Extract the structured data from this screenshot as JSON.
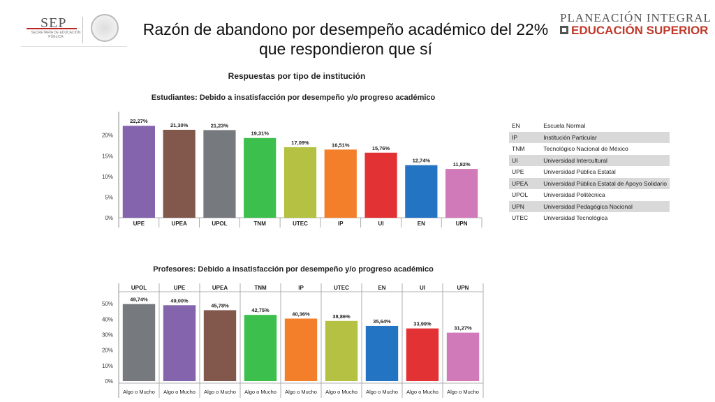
{
  "header": {
    "sep_logo_text": "SEP",
    "sep_subtext": "SECRETARÍA DE EDUCACIÓN PÚBLICA",
    "title": "Razón de abandono por desempeño académico del 22% que respondieron que sí",
    "planeacion_line1": "PLANEACIÓN INTEGRAL",
    "planeacion_line2": "EDUCACIÓN SUPERIOR",
    "subtitle": "Respuestas por tipo de institución"
  },
  "colors": {
    "UPE": "#8364ad",
    "UPEA": "#82574c",
    "UPOL": "#76797d",
    "TNM": "#3cbf4d",
    "UTEC": "#b4c142",
    "IP": "#f37f2b",
    "UI": "#e23234",
    "EN": "#2474c4",
    "UPN": "#d17ab9",
    "title_red": "#c0392b"
  },
  "chart_data": [
    {
      "type": "bar",
      "title": "Estudiantes: Debido a insatisfacción por desempeño y/o progreso académico",
      "categories": [
        "UPE",
        "UPEA",
        "UPOL",
        "TNM",
        "UTEC",
        "IP",
        "UI",
        "EN",
        "UPN"
      ],
      "values": [
        22.27,
        21.3,
        21.23,
        19.31,
        17.09,
        16.51,
        15.76,
        12.74,
        11.82
      ],
      "value_labels": [
        "22,27%",
        "21,30%",
        "21,23%",
        "19,31%",
        "17,09%",
        "16,51%",
        "15,76%",
        "12,74%",
        "11,82%"
      ],
      "yticks": [
        0,
        5,
        10,
        15,
        20
      ],
      "ytick_labels": [
        "0%",
        "5%",
        "10%",
        "15%",
        "20%"
      ],
      "ylim": [
        0,
        24
      ],
      "category_position": "bottom",
      "bottom_labels": []
    },
    {
      "type": "bar",
      "title": "Profesores: Debido a insatisfacción por desempeño y/o progreso académico",
      "categories": [
        "UPOL",
        "UPE",
        "UPEA",
        "TNM",
        "IP",
        "UTEC",
        "EN",
        "UI",
        "UPN"
      ],
      "values": [
        49.74,
        49.0,
        45.78,
        42.75,
        40.36,
        38.86,
        35.64,
        33.99,
        31.27
      ],
      "value_labels": [
        "49,74%",
        "49,00%",
        "45,78%",
        "42,75%",
        "40,36%",
        "38,86%",
        "35,64%",
        "33,99%",
        "31,27%"
      ],
      "yticks": [
        0,
        10,
        20,
        30,
        40,
        50
      ],
      "ytick_labels": [
        "0%",
        "10%",
        "20%",
        "30%",
        "40%",
        "50%"
      ],
      "ylim": [
        0,
        55
      ],
      "category_position": "top",
      "bottom_labels": [
        "Algo o Mucho",
        "Algo o Mucho",
        "Algo o Mucho",
        "Algo o Mucho",
        "Algo o Mucho",
        "Algo o Mucho",
        "Algo o Mucho",
        "Algo o Mucho",
        "Algo o Mucho"
      ]
    }
  ],
  "legend": [
    {
      "abbr": "EN",
      "name": "Escuela Normal"
    },
    {
      "abbr": "IP",
      "name": "Institución Particular"
    },
    {
      "abbr": "TNM",
      "name": "Tecnológico Nacional de México"
    },
    {
      "abbr": "UI",
      "name": "Universidad Intercultural"
    },
    {
      "abbr": "UPE",
      "name": "Universidad Pública Estatal"
    },
    {
      "abbr": "UPEA",
      "name": "Universidad Pública Estatal de Apoyo Solidario"
    },
    {
      "abbr": "UPOL",
      "name": "Universidad Politécnica"
    },
    {
      "abbr": "UPN",
      "name": "Universidad Pedagógica Nacional"
    },
    {
      "abbr": "UTEC",
      "name": "Universidad Tecnológica"
    }
  ]
}
